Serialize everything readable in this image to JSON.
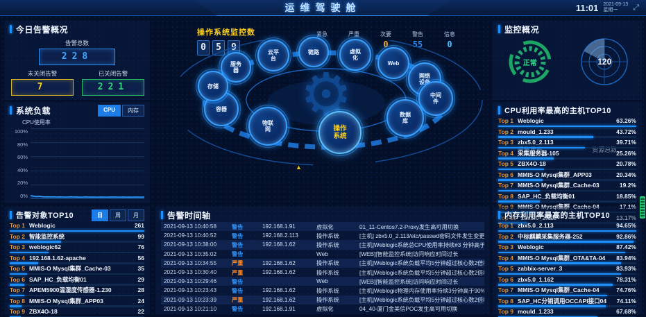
{
  "header": {
    "title": "运维驾驶舱",
    "time": "11:01",
    "date": "2021-09-13",
    "weekday": "星期一"
  },
  "alarm_overview": {
    "title": "今日告警概况",
    "total_label": "告警总数",
    "total": "228",
    "open_label": "未关闭告警",
    "open": "7",
    "closed_label": "已关闭告警",
    "closed": "221"
  },
  "system_load": {
    "title": "系统负载",
    "tab_cpu": "CPU",
    "tab_mem": "内存",
    "ylabel": "CPU使用率",
    "yticks": [
      {
        "t": "100%"
      },
      {
        "t": "80%"
      },
      {
        "t": "60%"
      },
      {
        "t": "40%"
      },
      {
        "t": "20%"
      },
      {
        "t": "0%"
      }
    ],
    "values": [
      5,
      4.2,
      3.6,
      4,
      3.4,
      3.1,
      3.3,
      3,
      3.2,
      2.9,
      3.1,
      3,
      2.8,
      3,
      3.2,
      2.9,
      3,
      2.8,
      2.9,
      3.1,
      2.8,
      3,
      2.9,
      2.8,
      3,
      2.9,
      2.8,
      3,
      2.9,
      3,
      2.8,
      2.9,
      3,
      2.8,
      2.9,
      2.8,
      3,
      2.9,
      2.8,
      3
    ]
  },
  "alarm_top10": {
    "title": "告警对象TOP10",
    "tab_day": "日",
    "tab_week": "周",
    "tab_month": "月",
    "rows": [
      {
        "rank": "Top 1",
        "name": "Weblogic",
        "value": "261",
        "pct": 100
      },
      {
        "rank": "Top 2",
        "name": "智能监控系统",
        "value": "99",
        "pct": 38
      },
      {
        "rank": "Top 3",
        "name": "weblogic62",
        "value": "76",
        "pct": 29
      },
      {
        "rank": "Top 4",
        "name": "192.168.1.62-apache",
        "value": "56",
        "pct": 21
      },
      {
        "rank": "Top 5",
        "name": "MMIS-O Mysql集群_Cache-03",
        "value": "35",
        "pct": 13
      },
      {
        "rank": "Top 6",
        "name": "SAP_HC_负载均衡01",
        "value": "29",
        "pct": 11
      },
      {
        "rank": "Top 7",
        "name": "APEM5900温湿度传感器-1.230",
        "value": "28",
        "pct": 11
      },
      {
        "rank": "Top 8",
        "name": "MMIS-O Mysql集群_APP03",
        "value": "24",
        "pct": 9
      },
      {
        "rank": "Top 9",
        "name": "ZBX4O-18",
        "value": "22",
        "pct": 8
      },
      {
        "rank": "Top 10",
        "name": "zbx5.0_2.113",
        "value": "17",
        "pct": 7
      }
    ]
  },
  "os_monitor": {
    "title": "操作系统监控数",
    "digits": [
      {
        "d": "0"
      },
      {
        "d": "5"
      },
      {
        "d": "9"
      }
    ]
  },
  "severity": {
    "items": [
      {
        "label": "紧急",
        "value": "0",
        "color": "#ff3226"
      },
      {
        "label": "严重",
        "value": "59",
        "color": "#ff4a1f"
      },
      {
        "label": "次要",
        "value": "0",
        "color": "#ffaf24"
      },
      {
        "label": "警告",
        "value": "55",
        "color": "#2e8df2"
      },
      {
        "label": "信息",
        "value": "0",
        "color": "#53c0ff"
      }
    ]
  },
  "ring": {
    "bubbles": [
      {
        "label": "服务\n器",
        "pos": [
          110,
          39,
          40
        ],
        "cls": "n"
      },
      {
        "label": "云平\n台",
        "pos": [
          164,
          22,
          42
        ],
        "cls": "n"
      },
      {
        "label": "链路",
        "pos": [
          222,
          17,
          40
        ],
        "cls": "n"
      },
      {
        "label": "虚拟\n化",
        "pos": [
          282,
          21,
          42
        ],
        "cls": "n"
      },
      {
        "label": "Web",
        "pos": [
          337,
          33,
          42
        ],
        "cls": "n"
      },
      {
        "label": "网络\n设备",
        "pos": [
          382,
          56,
          44
        ],
        "cls": "n"
      },
      {
        "label": "中间\n件",
        "pos": [
          398,
          84,
          46
        ],
        "cls": "n"
      },
      {
        "label": "数据\n库",
        "pos": [
          354,
          112,
          50
        ],
        "cls": "n"
      },
      {
        "label": "操作\n系统",
        "pos": [
          260,
          133,
          58
        ],
        "cls": "hl"
      },
      {
        "label": "物联\n网",
        "pos": [
          156,
          124,
          52
        ],
        "cls": "n"
      },
      {
        "label": "容器",
        "pos": [
          89,
          99,
          46
        ],
        "cls": "n"
      },
      {
        "label": "存储",
        "pos": [
          77,
          66,
          40
        ],
        "cls": "n"
      }
    ]
  },
  "timeline": {
    "title": "告警时间轴",
    "rows": [
      {
        "time": "2021-09-13 10:40:58",
        "level": "警告",
        "level_color": "#2e8df2",
        "ip": "192.168.1.91",
        "type": "虚拟化",
        "message": "01_11-Centos7.2-Proxy发生高可用切换"
      },
      {
        "time": "2021-09-13 10:40:52",
        "level": "警告",
        "level_color": "#2e8df2",
        "ip": "192.168.2.113",
        "type": "操作系统",
        "message": "[主机] zbx5.0_2.113/etc/passwd密码文件发生变更"
      },
      {
        "time": "2021-09-13 10:38:00",
        "level": "警告",
        "level_color": "#2e8df2",
        "ip": "192.168.1.62",
        "type": "操作系统",
        "message": "[主机]Weblogic系统总CPU使用率持续#3 分钟高于90 %"
      },
      {
        "time": "2021-09-13 10:35:02",
        "level": "警告",
        "level_color": "#2e8df2",
        "ip": "",
        "type": "Web",
        "message": "[WEB][智能监控系统]访问响应时间过长"
      },
      {
        "time": "2021-09-13 10:34:55",
        "level": "严重",
        "level_color": "#ff8b26",
        "ip": "192.168.1.62",
        "type": "操作系统",
        "message": "[主机]Weblogic系统负载平均5分钟超过核心数2倍核心数，系统负载过高"
      },
      {
        "time": "2021-09-13 10:30:40",
        "level": "严重",
        "level_color": "#ff8b26",
        "ip": "192.168.1.62",
        "type": "操作系统",
        "message": "[主机]Weblogic系统负载平均5分钟超过核心数2倍核心数，系统负载过高"
      },
      {
        "time": "2021-09-13 10:29:46",
        "level": "警告",
        "level_color": "#2e8df2",
        "ip": "",
        "type": "Web",
        "message": "[WEB][智能监控系统]访问响应时间过长"
      },
      {
        "time": "2021-09-13 10:23:43",
        "level": "警告",
        "level_color": "#2e8df2",
        "ip": "192.168.1.62",
        "type": "操作系统",
        "message": "[主机]Weblogic物理内存使用率持续3分钟高于90%"
      },
      {
        "time": "2021-09-13 10:23:39",
        "level": "严重",
        "level_color": "#ff8b26",
        "ip": "192.168.1.62",
        "type": "操作系统",
        "message": "[主机]Weblogic系统负载平均5分钟超过核心数2倍核心数，系统负载过高"
      },
      {
        "time": "2021-09-13 10:21:10",
        "level": "警告",
        "level_color": "#2e8df2",
        "ip": "192.168.1.91",
        "type": "虚拟化",
        "message": "04_40-厦门金美信POC发生高可用切换"
      }
    ]
  },
  "monitor_overview": {
    "title": "监控概况",
    "gauge_status": "正常",
    "gauge_label": "采集状态",
    "radar_value": "120",
    "radar_label": "资源总数"
  },
  "cpu_top10": {
    "title": "CPU利用率最高的主机TOP10",
    "rows": [
      {
        "rank": "Top 1",
        "name": "Weblogic",
        "value": "63.26%",
        "pct": 100
      },
      {
        "rank": "Top 2",
        "name": "mould_1.233",
        "value": "43.72%",
        "pct": 69
      },
      {
        "rank": "Top 3",
        "name": "zbx5.0_2.113",
        "value": "39.71%",
        "pct": 63
      },
      {
        "rank": "Top 4",
        "name": "采集服务器-105",
        "value": "25.26%",
        "pct": 40
      },
      {
        "rank": "Top 5",
        "name": "ZBX4O-18",
        "value": "20.78%",
        "pct": 33
      },
      {
        "rank": "Top 6",
        "name": "MMIS-O Mysql集群_APP03",
        "value": "20.34%",
        "pct": 32
      },
      {
        "rank": "Top 7",
        "name": "MMIS-O Mysql集群_Cache-03",
        "value": "19.2%",
        "pct": 30
      },
      {
        "rank": "Top 8",
        "name": "SAP_HC_负载均衡01",
        "value": "18.85%",
        "pct": 30
      },
      {
        "rank": "Top 9",
        "name": "MMIS-O Mysql集群_Cache-04",
        "value": "17.1%",
        "pct": 27
      },
      {
        "rank": "Top 10",
        "name": "zbx5.0_2.113",
        "value": "13.17%",
        "pct": 21
      }
    ]
  },
  "mem_top10": {
    "title": "内存利用率最高的主机TOP10",
    "rows": [
      {
        "rank": "Top 1",
        "name": "zbx5.0_2.113",
        "value": "94.65%",
        "pct": 100
      },
      {
        "rank": "Top 2",
        "name": "中标麒麟采集服务器-252",
        "value": "92.86%",
        "pct": 98
      },
      {
        "rank": "Top 3",
        "name": "Weblogic",
        "value": "87.42%",
        "pct": 92
      },
      {
        "rank": "Top 4",
        "name": "MMIS-O Mysql集群_OTA&TA-04",
        "value": "83.94%",
        "pct": 89
      },
      {
        "rank": "Top 5",
        "name": "zabbix-server_3",
        "value": "83.93%",
        "pct": 89
      },
      {
        "rank": "Top 6",
        "name": "zbx5.0_1.162",
        "value": "78.31%",
        "pct": 83
      },
      {
        "rank": "Top 7",
        "name": "MMIS-O Mysql集群_Cache-04",
        "value": "74.76%",
        "pct": 79
      },
      {
        "rank": "Top 8",
        "name": "SAP_HC分销调用OCCAPI接口04",
        "value": "74.11%",
        "pct": 78
      },
      {
        "rank": "Top 9",
        "name": "mould_1.233",
        "value": "67.68%",
        "pct": 72
      },
      {
        "rank": "Top 10",
        "name": "windows-snmp-1.65",
        "value": "60%",
        "pct": 63
      }
    ]
  }
}
